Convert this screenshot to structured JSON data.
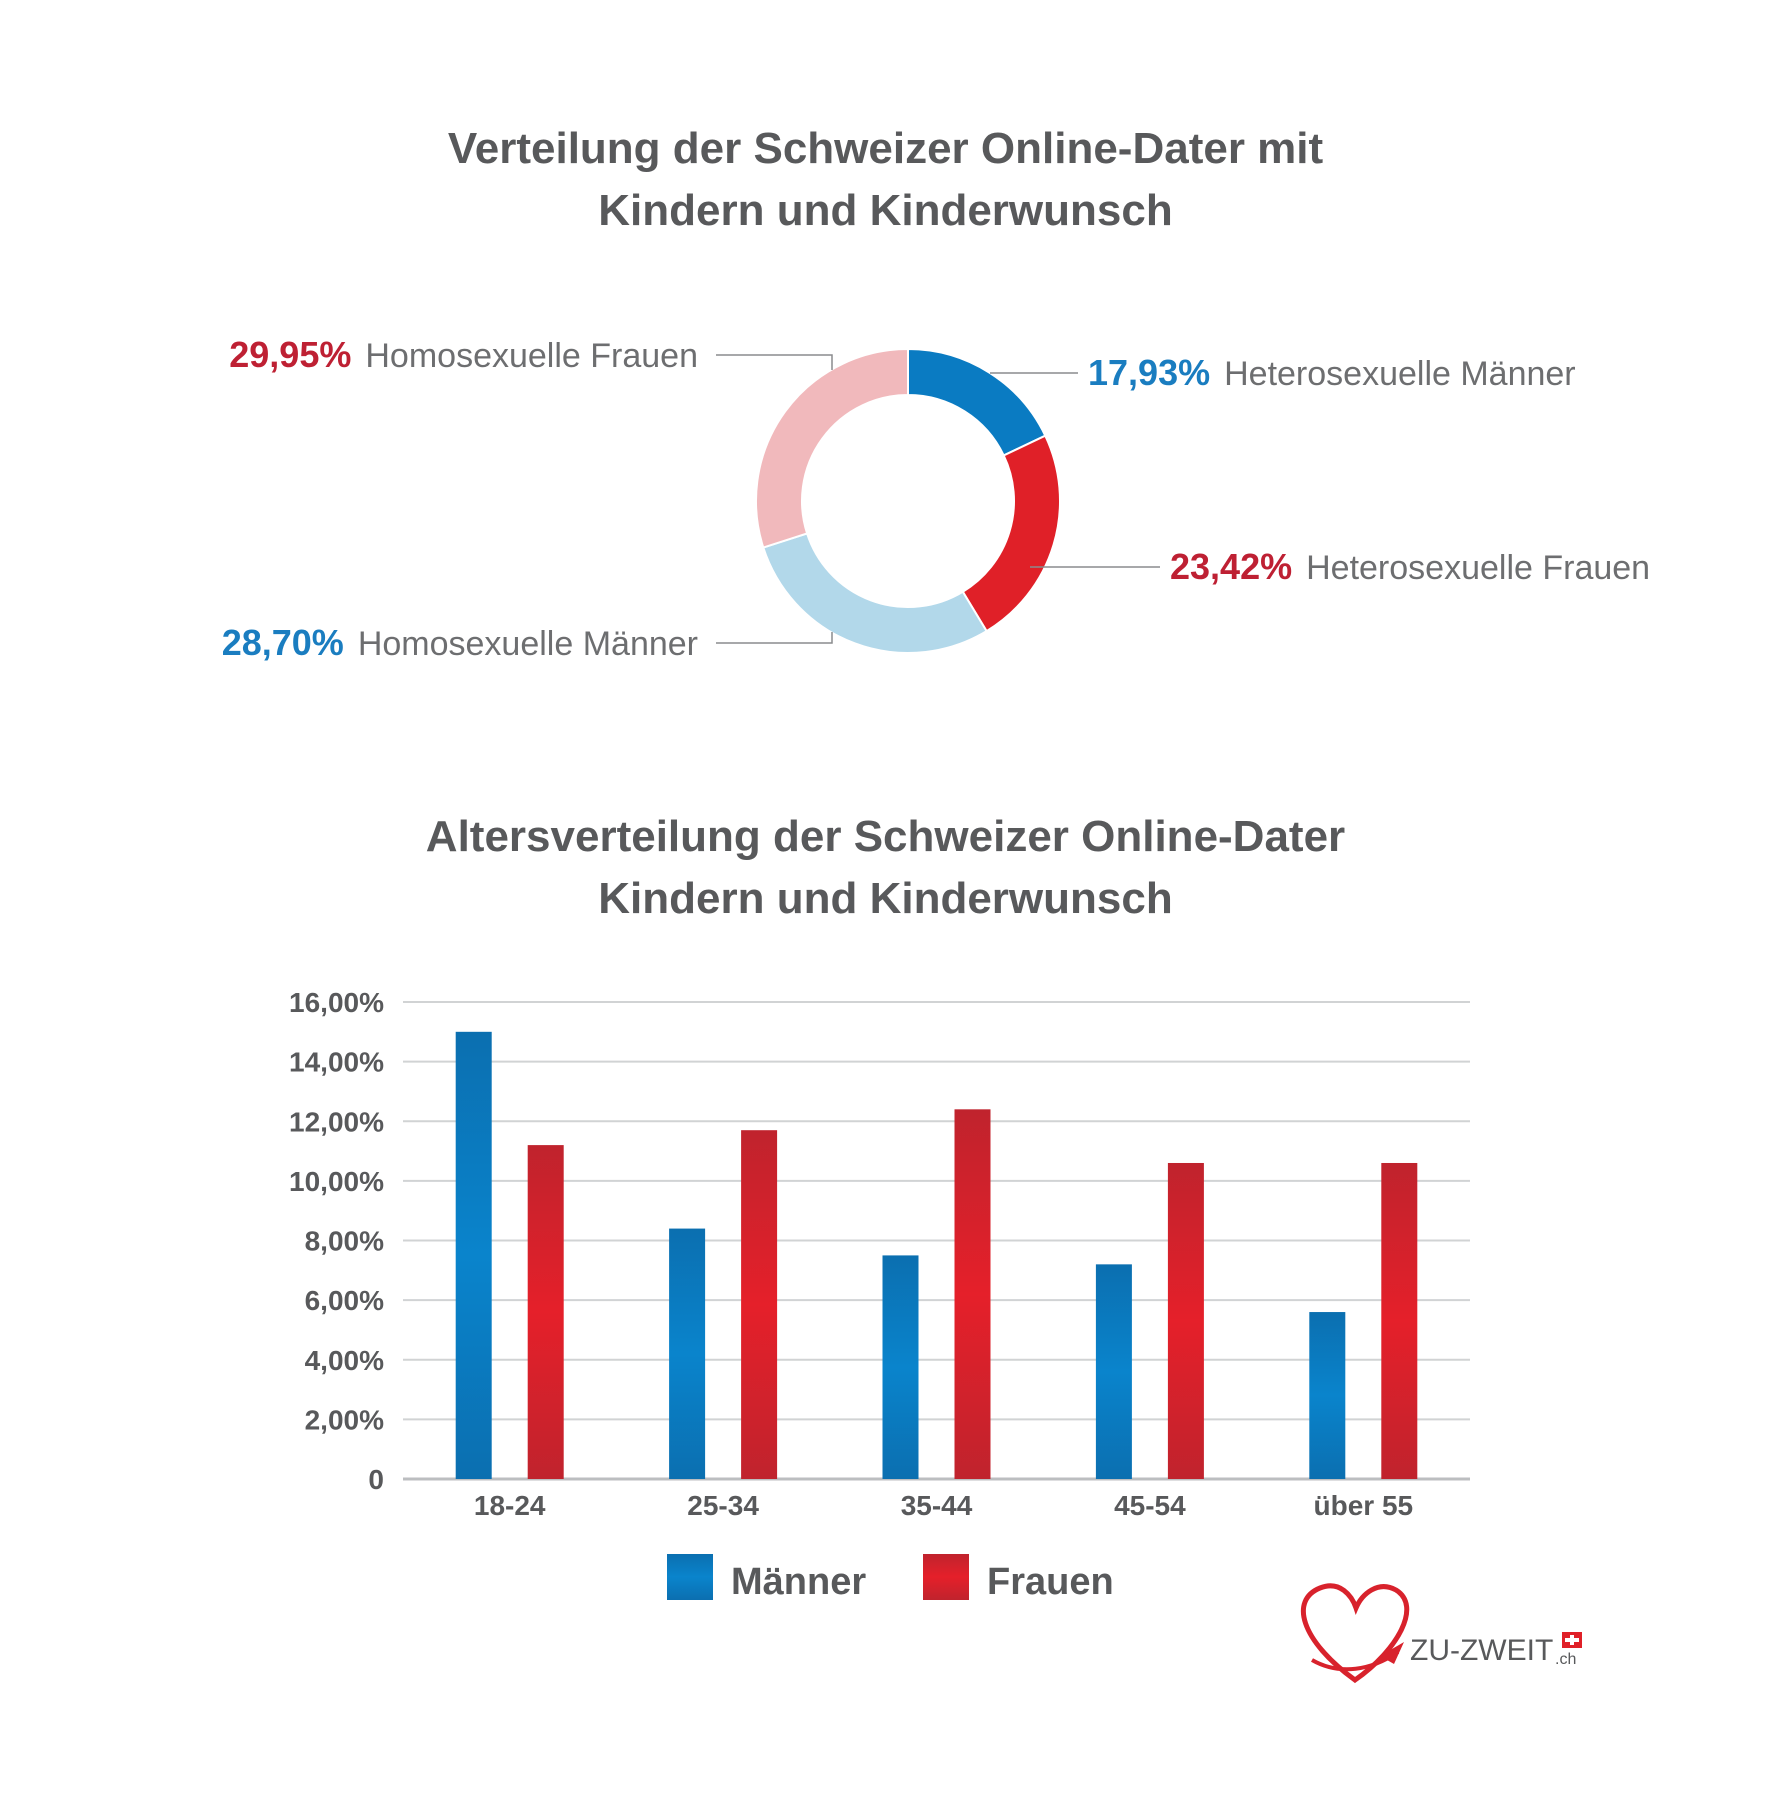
{
  "donut": {
    "title_lines": [
      "Verteilung der Schweizer Online-Dater mit",
      "Kindern und Kinderwunsch"
    ],
    "chart_data": {
      "type": "pie",
      "title": "Verteilung der Schweizer Online-Dater mit Kindern und Kinderwunsch",
      "slices": [
        {
          "label": "Heterosexuelle Männer",
          "value": 17.93,
          "value_text": "17,93%",
          "color": "#0a7bc2",
          "label_color": "#1a7dc0"
        },
        {
          "label": "Heterosexuelle Frauen",
          "value": 23.42,
          "value_text": "23,42%",
          "color": "#e02028",
          "label_color": "#be2033"
        },
        {
          "label": "Homosexuelle Männer",
          "value": 28.7,
          "value_text": "28,70%",
          "color": "#b2d8ea",
          "label_color": "#1a7dc0"
        },
        {
          "label": "Homosexuelle Frauen",
          "value": 29.95,
          "value_text": "29,95%",
          "color": "#f1b9bc",
          "label_color": "#be2033"
        }
      ]
    }
  },
  "bars": {
    "title_lines": [
      "Altersverteilung der Schweizer Online-Dater",
      "Kindern und Kinderwunsch"
    ],
    "chart_data": {
      "type": "bar",
      "title": "Altersverteilung der Schweizer Online-Dater Kindern und Kinderwunsch",
      "categories": [
        "18-24",
        "25-34",
        "35-44",
        "45-54",
        "über 55"
      ],
      "series": [
        {
          "name": "Männer",
          "values": [
            15.0,
            8.4,
            7.5,
            7.2,
            5.6
          ],
          "color": "#0a7bc2"
        },
        {
          "name": "Frauen",
          "values": [
            11.2,
            11.7,
            12.4,
            10.6,
            10.6
          ],
          "color": "#d8222c"
        }
      ],
      "ylim": [
        0,
        16
      ],
      "y_ticks": [
        "0",
        "2,00%",
        "4,00%",
        "6,00%",
        "8,00%",
        "10,00%",
        "12,00%",
        "14,00%",
        "16,00%"
      ],
      "grid": true,
      "legend": "bottom"
    }
  },
  "logo": {
    "text": "ZU-ZWEIT",
    "suffix": ".ch"
  }
}
